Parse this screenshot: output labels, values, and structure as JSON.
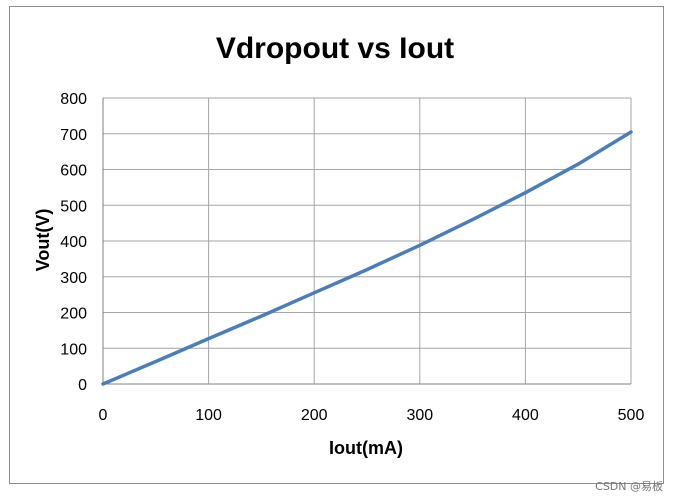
{
  "watermark": "CSDN @易板",
  "colors": {
    "line": "#4a7ebb",
    "grid": "#a6a6a6",
    "text": "#000000"
  },
  "chart_data": {
    "type": "line",
    "title": "Vdropout vs Iout",
    "xlabel": "Iout(mA)",
    "ylabel": "Vout(V)",
    "xlim": [
      0,
      500
    ],
    "ylim": [
      0,
      800
    ],
    "xticks": [
      0,
      100,
      200,
      300,
      400,
      500
    ],
    "yticks": [
      0,
      100,
      200,
      300,
      400,
      500,
      600,
      700,
      800
    ],
    "grid": true,
    "legend": "none",
    "series": [
      {
        "x": [
          0,
          50,
          100,
          150,
          200,
          250,
          300,
          350,
          400,
          450,
          500
        ],
        "values": [
          0,
          63,
          127,
          190,
          255,
          320,
          388,
          460,
          535,
          615,
          705
        ]
      }
    ]
  }
}
